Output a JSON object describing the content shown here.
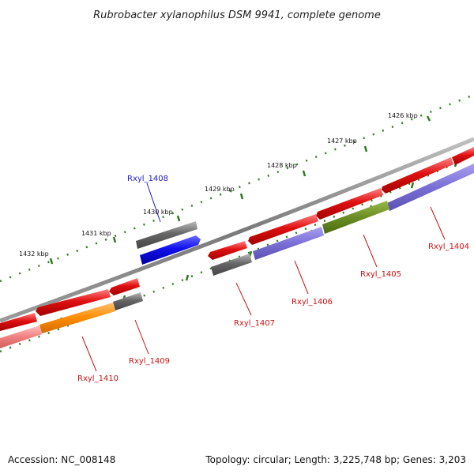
{
  "title": "Rubrobacter xylanophilus DSM 9941, complete genome",
  "footer": {
    "accession": "Accession: NC_008148",
    "summary": "Topology: circular; Length: 3,225,748 bp; Genes: 3,203"
  },
  "colors": {
    "backbone": "#8a8a8a",
    "tick": "#2e7d1f",
    "label_forward": "#1a1acc",
    "label_reverse": "#cc1111"
  },
  "scale_labels": [
    "1426 kbp",
    "1427 kbp",
    "1428 kbp",
    "1429 kbp",
    "1430 kbp",
    "1431 kbp",
    "1432 kbp"
  ],
  "genes": [
    {
      "id": "Rxyl_1404",
      "strand": "reverse",
      "color": "#e01b1b"
    },
    {
      "id": "Rxyl_1405",
      "strand": "reverse",
      "color": "#e01b1b"
    },
    {
      "id": "Rxyl_1406",
      "strand": "reverse",
      "color": "#e01b1b"
    },
    {
      "id": "Rxyl_1407",
      "strand": "reverse",
      "color": "#e01b1b"
    },
    {
      "id": "Rxyl_1408",
      "strand": "forward",
      "color": "#1a1aee"
    },
    {
      "id": "Rxyl_1409",
      "strand": "reverse",
      "color": "#e01b1b"
    },
    {
      "id": "Rxyl_1410",
      "strand": "reverse",
      "color": "#e01b1b"
    }
  ],
  "legend": {
    "cog_colors": [
      "#7b6fd6",
      "#6b8e23",
      "#ff8c00",
      "#f08080",
      "#666666"
    ]
  }
}
